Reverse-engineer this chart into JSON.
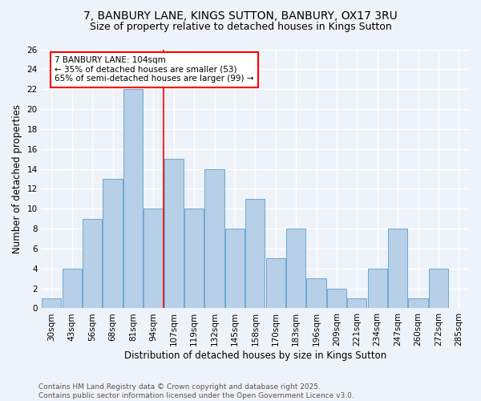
{
  "title1": "7, BANBURY LANE, KINGS SUTTON, BANBURY, OX17 3RU",
  "title2": "Size of property relative to detached houses in Kings Sutton",
  "xlabel": "Distribution of detached houses by size in Kings Sutton",
  "ylabel": "Number of detached properties",
  "categories": [
    "30sqm",
    "43sqm",
    "56sqm",
    "68sqm",
    "81sqm",
    "94sqm",
    "107sqm",
    "119sqm",
    "132sqm",
    "145sqm",
    "158sqm",
    "170sqm",
    "183sqm",
    "196sqm",
    "209sqm",
    "221sqm",
    "234sqm",
    "247sqm",
    "260sqm",
    "272sqm",
    "285sqm"
  ],
  "values": [
    1,
    4,
    9,
    13,
    22,
    10,
    15,
    10,
    14,
    8,
    11,
    5,
    8,
    3,
    2,
    1,
    4,
    8,
    1,
    4,
    0
  ],
  "bar_color": "#b8cfe8",
  "bar_edge_color": "#6aaad4",
  "annotation_text_line1": "7 BANBURY LANE: 104sqm",
  "annotation_text_line2": "← 35% of detached houses are smaller (53)",
  "annotation_text_line3": "65% of semi-detached houses are larger (99) →",
  "annotation_box_color": "white",
  "annotation_box_edge_color": "red",
  "vline_color": "red",
  "ylim": [
    0,
    26
  ],
  "yticks": [
    0,
    2,
    4,
    6,
    8,
    10,
    12,
    14,
    16,
    18,
    20,
    22,
    24,
    26
  ],
  "footer1": "Contains HM Land Registry data © Crown copyright and database right 2025.",
  "footer2": "Contains public sector information licensed under the Open Government Licence v3.0.",
  "bg_color": "#eef2f9",
  "grid_color": "white",
  "title1_fontsize": 10,
  "title2_fontsize": 9,
  "axis_label_fontsize": 8.5,
  "tick_fontsize": 7.5,
  "annotation_fontsize": 7.5,
  "footer_fontsize": 6.5
}
